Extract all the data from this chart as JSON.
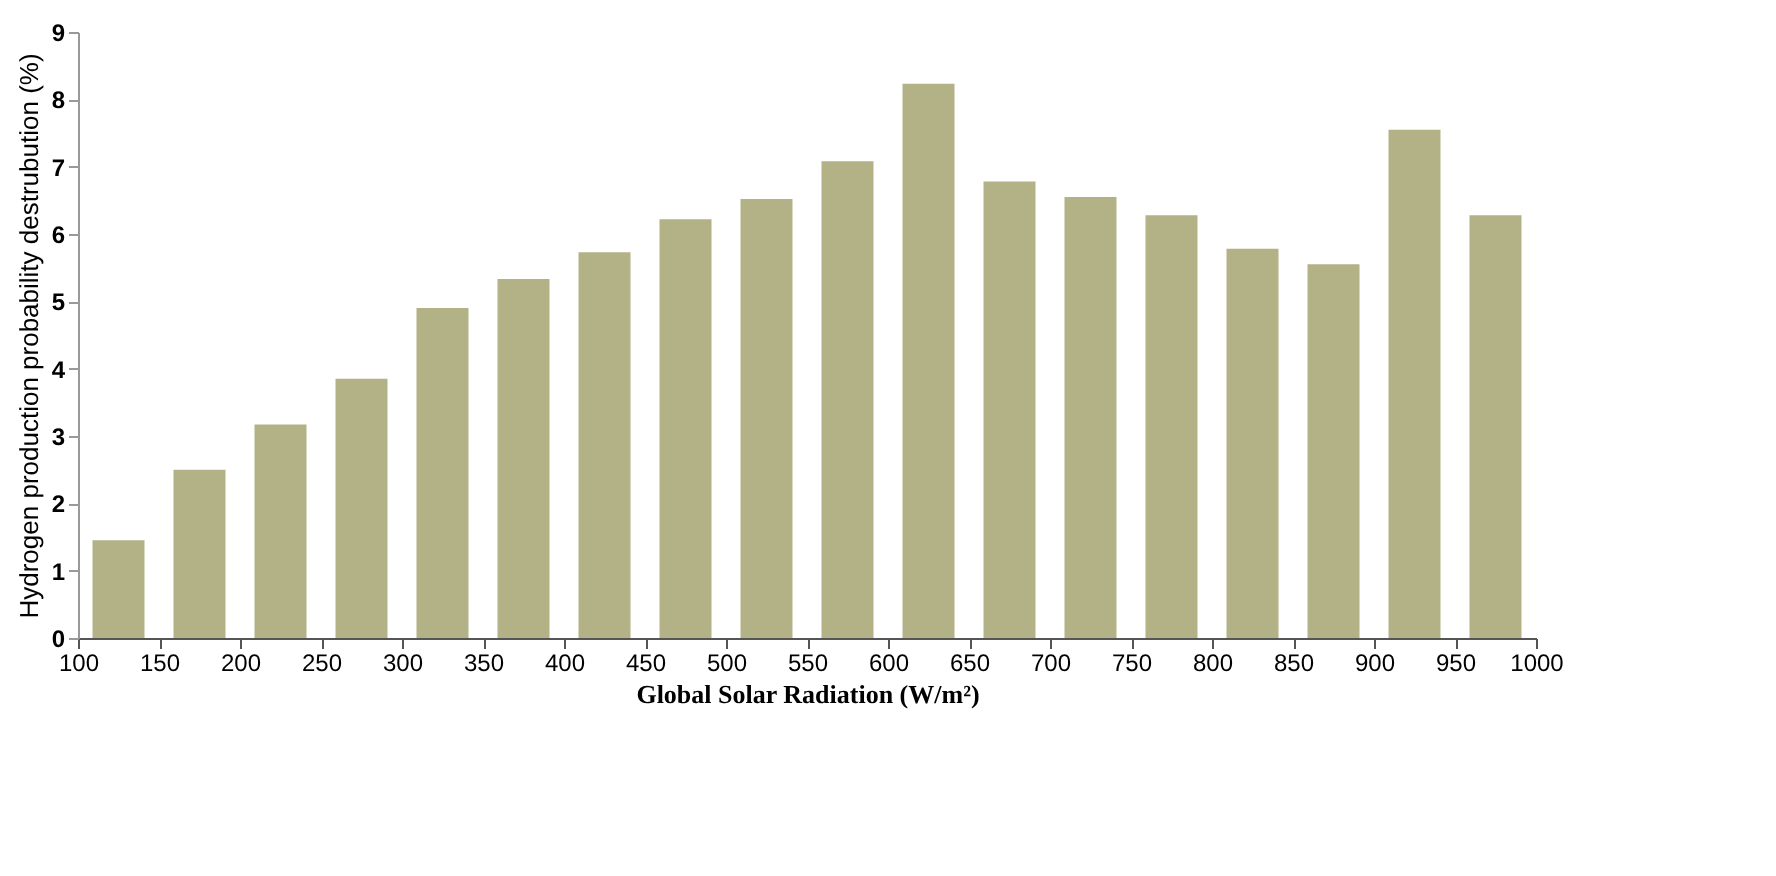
{
  "chart_data": {
    "type": "bar",
    "xlabel": "Global Solar Radiation (W/m²)",
    "ylabel": "Hydrogen production probability destrubution (%)",
    "x": [
      125,
      175,
      225,
      275,
      325,
      375,
      425,
      475,
      525,
      575,
      625,
      675,
      725,
      775,
      825,
      875,
      925,
      975
    ],
    "values": [
      1.45,
      2.5,
      3.17,
      3.85,
      4.9,
      5.33,
      5.73,
      6.22,
      6.52,
      7.08,
      8.23,
      6.78,
      6.55,
      6.28,
      5.78,
      5.55,
      7.55,
      6.28
    ],
    "color": "#b3b186",
    "xlim": [
      100,
      1000
    ],
    "xticks": [
      100,
      150,
      200,
      250,
      300,
      350,
      400,
      450,
      500,
      550,
      600,
      650,
      700,
      750,
      800,
      850,
      900,
      950,
      1000
    ],
    "ylim": [
      0,
      9
    ],
    "yticks": [
      0,
      1,
      2,
      3,
      4,
      5,
      6,
      7,
      8,
      9
    ],
    "grid": false
  }
}
